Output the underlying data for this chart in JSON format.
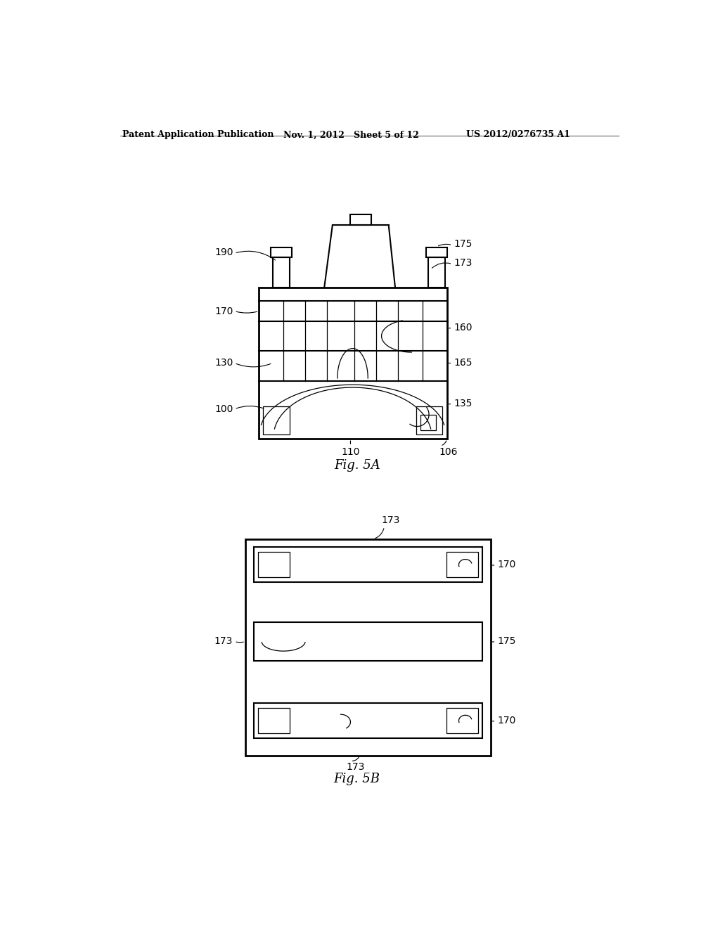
{
  "bg_color": "#ffffff",
  "header_left": "Patent Application Publication",
  "header_mid": "Nov. 1, 2012   Sheet 5 of 12",
  "header_right": "US 2012/0276735 A1",
  "fig5a_caption": "Fig. 5A",
  "fig5b_caption": "Fig. 5B",
  "line_color": "#000000",
  "line_width": 1.5,
  "thin_line": 0.9
}
